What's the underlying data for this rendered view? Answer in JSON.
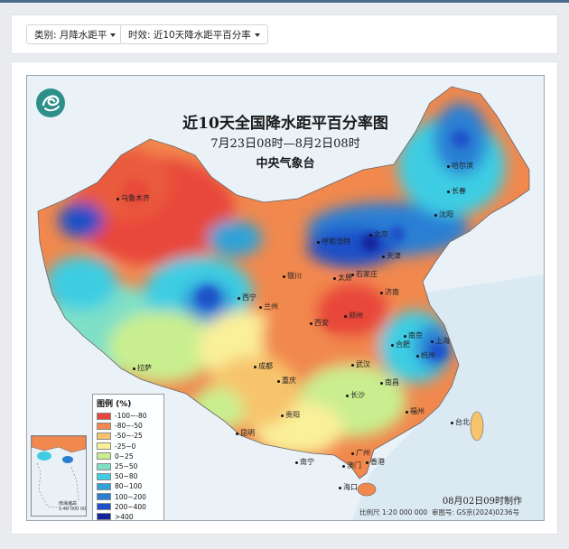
{
  "filters": {
    "category_label": "类别: 月降水距平",
    "timing_label": "时效: 近10天降水距平百分率"
  },
  "map": {
    "title": "近10天全国降水距平百分率图",
    "subtitle": "7月23日08时—8月2日08时",
    "agency": "中央气象台",
    "made_time": "08月02日09时制作",
    "scale": "比例尺  1:20 000 000",
    "map_number": "审图号: GS京(2024)0236号",
    "inset_label": "南海诸岛\n1:40 000 000"
  },
  "legend": {
    "title": "图例 (%)",
    "items": [
      {
        "label": "-100~-80",
        "color": "#e8463a"
      },
      {
        "label": "-80~-50",
        "color": "#f1884d"
      },
      {
        "label": "-50~-25",
        "color": "#f7c46c"
      },
      {
        "label": "-25~0",
        "color": "#faf09a"
      },
      {
        "label": "0~25",
        "color": "#c9ee8f"
      },
      {
        "label": "25~50",
        "color": "#7fe0c6"
      },
      {
        "label": "50~80",
        "color": "#3ecde3"
      },
      {
        "label": "80~100",
        "color": "#2fa3d8"
      },
      {
        "label": "100~200",
        "color": "#2a7fd4"
      },
      {
        "label": "200~400",
        "color": "#1d4fc8"
      },
      {
        "label": ">400",
        "color": "#12239a"
      }
    ]
  },
  "cities": [
    "乌鲁木齐",
    "哈尔滨",
    "长春",
    "沈阳",
    "呼和浩特",
    "北京",
    "天津",
    "银川",
    "太原",
    "石家庄",
    "济南",
    "西宁",
    "兰州",
    "西安",
    "郑州",
    "合肥",
    "南京",
    "上海",
    "杭州",
    "拉萨",
    "成都",
    "武汉",
    "重庆",
    "长沙",
    "南昌",
    "福州",
    "台北",
    "贵阳",
    "昆明",
    "南宁",
    "广州",
    "澳门",
    "香港",
    "海口"
  ]
}
